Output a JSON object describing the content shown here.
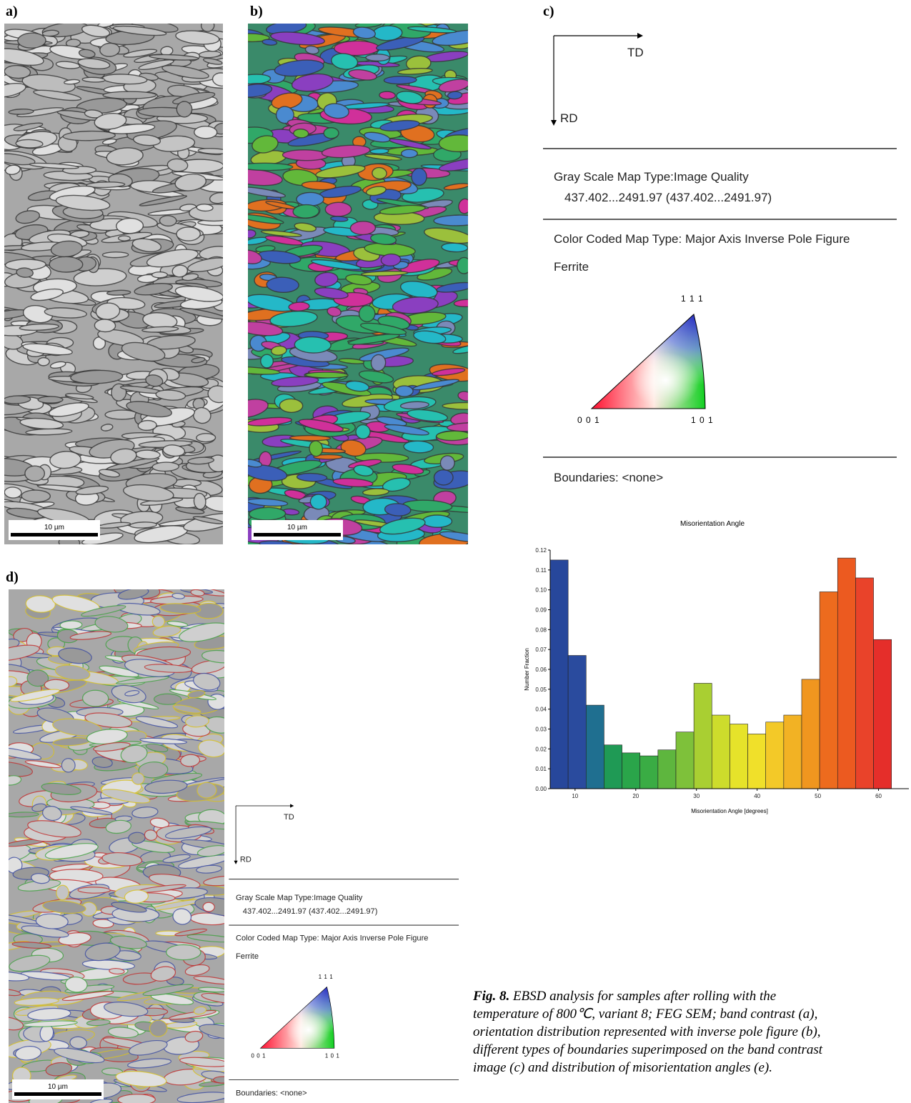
{
  "panels": {
    "a": {
      "label": "a)",
      "scale_bar": "10 µm"
    },
    "b": {
      "label": "b)",
      "scale_bar": "10 µm"
    },
    "c": {
      "label": "c)"
    },
    "d": {
      "label": "d)",
      "scale_bar": "10 µm"
    }
  },
  "legend_c": {
    "td": "TD",
    "rd": "RD",
    "gray_scale": "Gray Scale Map Type:Image Quality",
    "gray_range": "437.402...2491.97 (437.402...2491.97)",
    "color_coded": "Color Coded Map Type: Major Axis Inverse Pole Figure",
    "phase": "Ferrite",
    "ipf_111": "1 1 1",
    "ipf_001": "0 0 1",
    "ipf_101": "1 0 1",
    "boundaries": "Boundaries: <none>"
  },
  "legend_d": {
    "td": "TD",
    "rd": "RD",
    "gray_scale": "Gray Scale Map Type:Image Quality",
    "gray_range": "437.402...2491.97 (437.402...2491.97)",
    "color_coded": "Color Coded Map Type: Major Axis Inverse Pole Figure",
    "phase": "Ferrite",
    "ipf_111": "1 1 1",
    "ipf_001": "0 0 1",
    "ipf_101": "1 0 1",
    "boundaries": "Boundaries: <none>"
  },
  "chart_data": {
    "type": "histogram",
    "title": "Misorientation Angle",
    "x_label": "Misorientation Angle [degrees]",
    "y_label": "Number Fraction",
    "bins": [
      5.9,
      8.86,
      11.82,
      14.78,
      17.74,
      20.7,
      23.66,
      26.62,
      29.58,
      32.54,
      35.5,
      38.46,
      41.42,
      44.38,
      47.34,
      50.3,
      53.26,
      56.22,
      59.18,
      62.14
    ],
    "values": [
      0.115,
      0.067,
      0.042,
      0.022,
      0.018,
      0.0165,
      0.0195,
      0.0285,
      0.053,
      0.037,
      0.0325,
      0.0275,
      0.0335,
      0.037,
      0.055,
      0.099,
      0.116,
      0.106,
      0.075
    ],
    "colors": [
      "#27479b",
      "#2a4b9e",
      "#1f6f90",
      "#1f9a55",
      "#2aa54a",
      "#3aac44",
      "#5eb63e",
      "#7ec13a",
      "#a9cf32",
      "#cddc2c",
      "#e6e32a",
      "#f0e02a",
      "#f3c928",
      "#f2b224",
      "#f0961f",
      "#ed6b1e",
      "#ec5a20",
      "#e9432a",
      "#e52e2a"
    ],
    "xlim": [
      5.9,
      65
    ],
    "xticks": [
      10,
      20,
      30,
      40,
      50,
      60
    ],
    "ylim": [
      0,
      0.12
    ],
    "yticks": [
      {
        "value": 0,
        "label": "0.00"
      },
      0.01,
      0.02,
      0.03,
      0.04,
      0.05,
      0.06,
      0.07,
      0.08,
      0.09,
      {
        "value": 0.1,
        "label": "0.10"
      },
      0.11,
      0.12
    ]
  },
  "caption": {
    "lead": "Fig. 8.",
    "lines": [
      " EBSD analysis for samples after rolling with the",
      "temperature of 800℃, variant 8; FEG SEM; band contrast (a),",
      "orientation distribution represented with inverse pole figure (b),",
      "different types of boundaries superimposed on the band contrast",
      "image (c) and distribution of misorientation angles (e)."
    ]
  }
}
